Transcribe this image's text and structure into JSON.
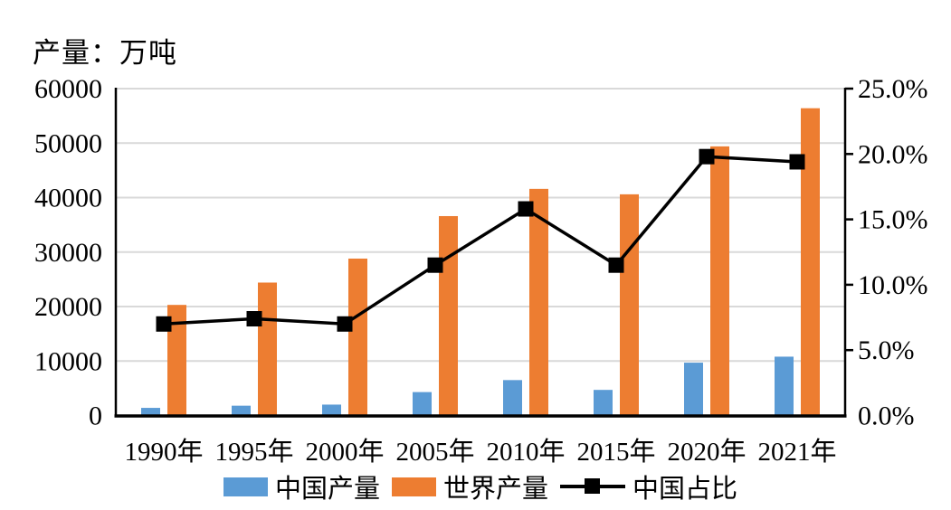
{
  "chart_data": {
    "type": "bar",
    "subtype": "grouped-bars-with-line-combo",
    "title": "产量：万吨",
    "categories": [
      "1990年",
      "1995年",
      "2000年",
      "2005年",
      "2010年",
      "2015年",
      "2020年",
      "2021年"
    ],
    "series": [
      {
        "name": "中国产量",
        "type": "bar",
        "axis": "left",
        "color": "#5B9BD5",
        "values": [
          1400,
          1800,
          2000,
          4300,
          6500,
          4700,
          9700,
          10800
        ]
      },
      {
        "name": "世界产量",
        "type": "bar",
        "axis": "left",
        "color": "#ED7D31",
        "values": [
          20300,
          24400,
          28800,
          36600,
          41600,
          40600,
          49400,
          56400
        ]
      },
      {
        "name": "中国占比",
        "type": "line",
        "axis": "right",
        "color": "#000000",
        "marker": "square",
        "unit": "%",
        "values": [
          7.0,
          7.4,
          7.0,
          11.5,
          15.8,
          11.5,
          19.8,
          19.4
        ]
      }
    ],
    "left_axis": {
      "min": 0,
      "max": 60000,
      "step": 10000,
      "tick_labels": [
        "0",
        "10000",
        "20000",
        "30000",
        "40000",
        "50000",
        "60000"
      ]
    },
    "right_axis": {
      "min": 0,
      "max": 25,
      "step": 5,
      "tick_labels": [
        "0.0%",
        "5.0%",
        "10.0%",
        "15.0%",
        "20.0%",
        "25.0%"
      ]
    },
    "legend": {
      "position": "bottom",
      "entries": [
        "中国产量",
        "世界产量",
        "中国占比"
      ]
    },
    "grid": true,
    "colors": {
      "china": "#5B9BD5",
      "world": "#ED7D31",
      "line": "#000000",
      "gridline": "#D9D9D9",
      "axis": "#000000"
    }
  }
}
